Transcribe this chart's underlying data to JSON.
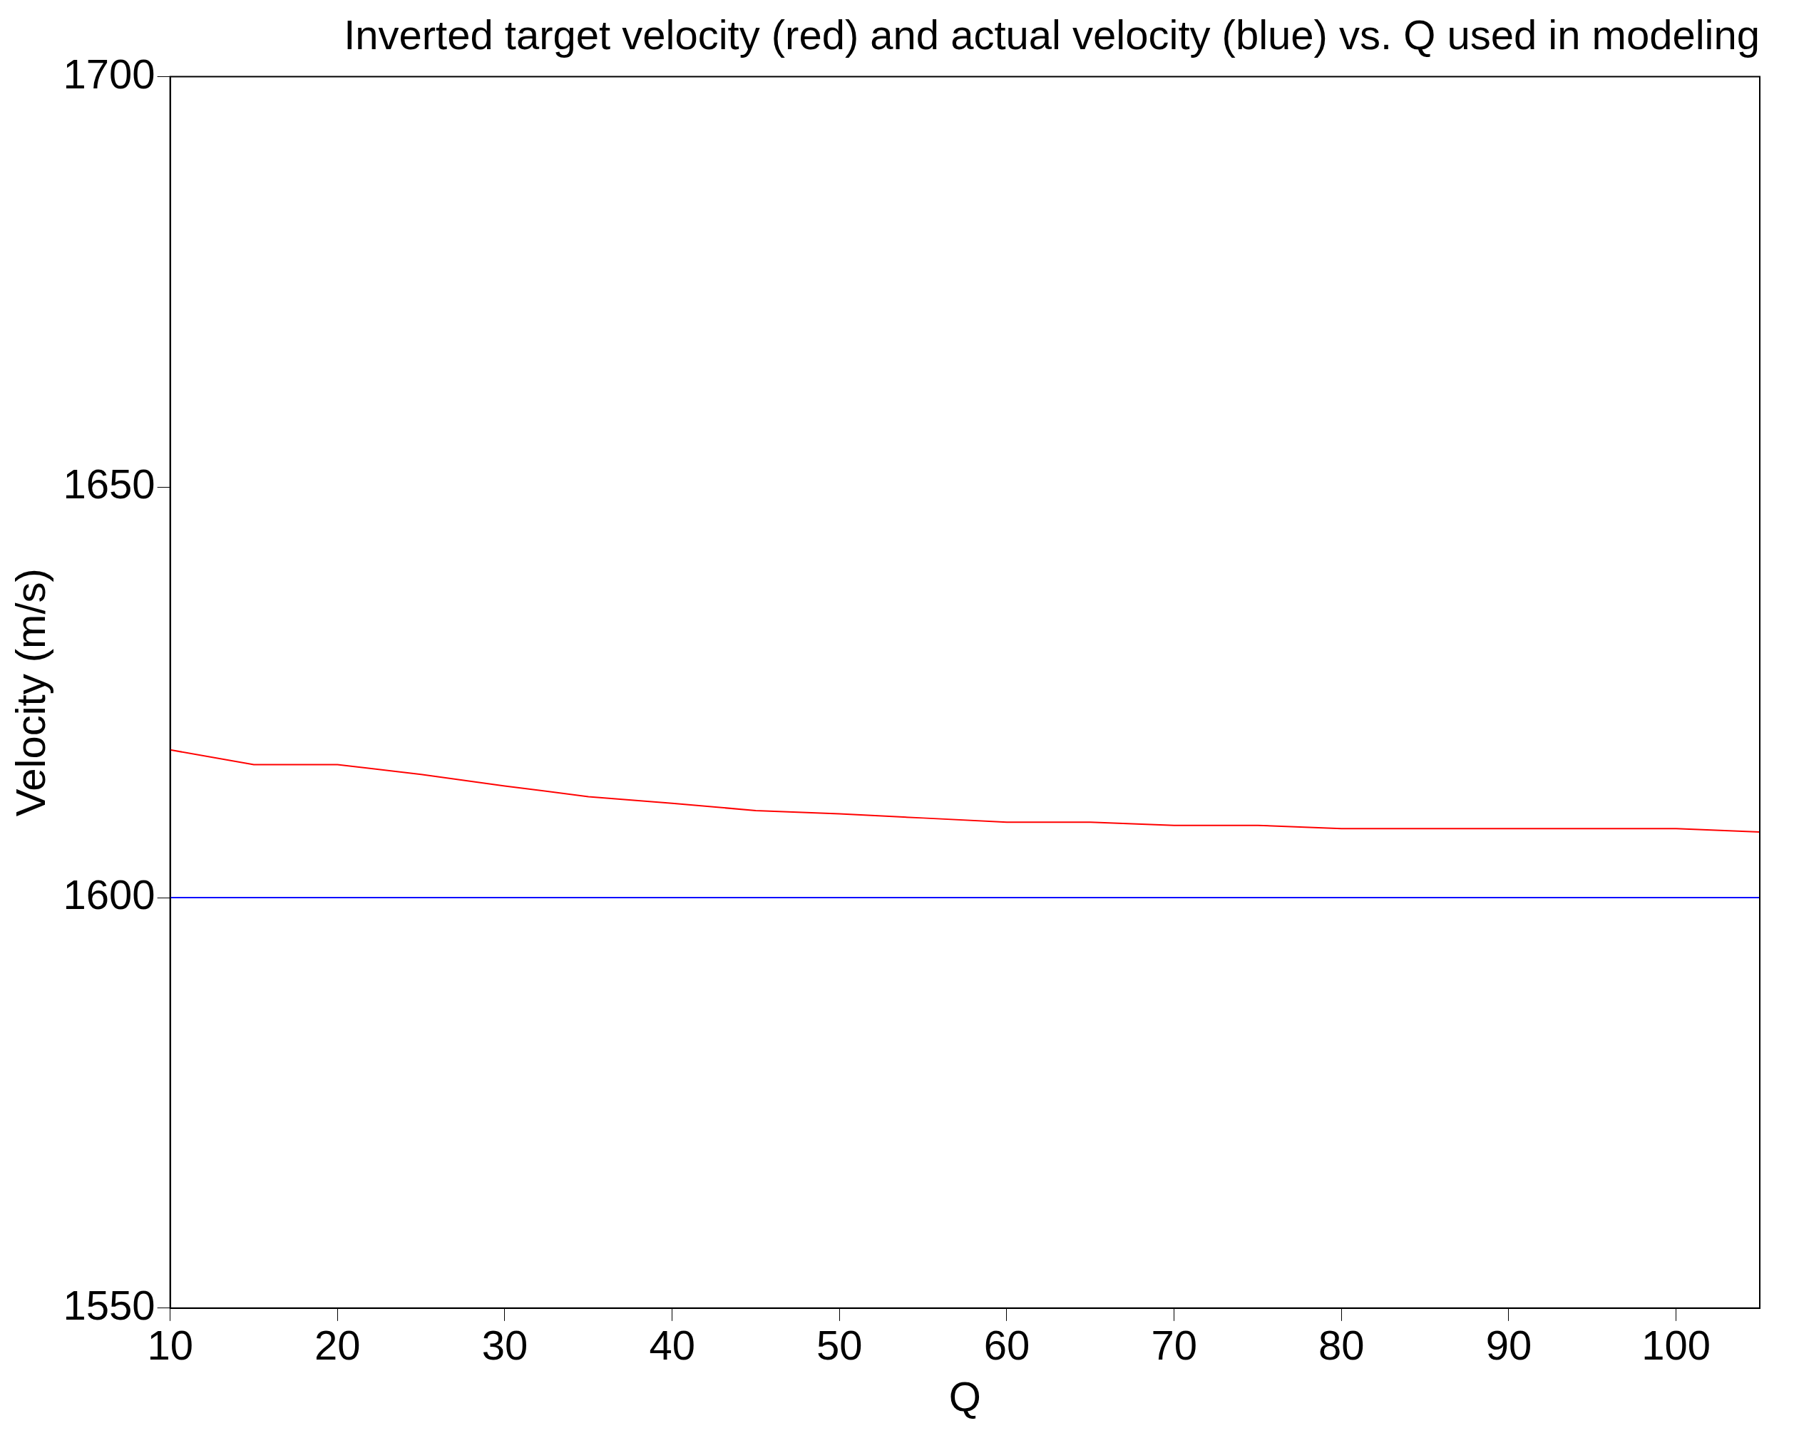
{
  "chart_data": {
    "type": "line",
    "title": "Inverted target velocity (red) and actual velocity (blue) vs. Q used in modeling",
    "xlabel": "Q",
    "ylabel": "Velocity (m/s)",
    "x": [
      10,
      15,
      20,
      25,
      30,
      35,
      40,
      45,
      50,
      55,
      60,
      65,
      70,
      75,
      80,
      85,
      90,
      95,
      100,
      105
    ],
    "series": [
      {
        "color": "#ff0000",
        "values": [
          1618,
          1616.2,
          1616.2,
          1615,
          1613.6,
          1612.3,
          1611.5,
          1610.6,
          1610.2,
          1609.7,
          1609.2,
          1609.2,
          1608.8,
          1608.8,
          1608.4,
          1608.4,
          1608.4,
          1608.4,
          1608.4,
          1608
        ]
      },
      {
        "color": "#0000ff",
        "values": [
          1600,
          1600,
          1600,
          1600,
          1600,
          1600,
          1600,
          1600,
          1600,
          1600,
          1600,
          1600,
          1600,
          1600,
          1600,
          1600,
          1600,
          1600,
          1600,
          1600
        ]
      }
    ],
    "xlim": [
      10,
      105
    ],
    "xticks": [
      10,
      20,
      30,
      40,
      50,
      60,
      70,
      80,
      90,
      100
    ],
    "ylim": [
      1550,
      1700
    ],
    "yticks": [
      1550,
      1600,
      1650,
      1700
    ],
    "grid": false,
    "legend": false,
    "marker": "none",
    "line_style": "solid"
  }
}
